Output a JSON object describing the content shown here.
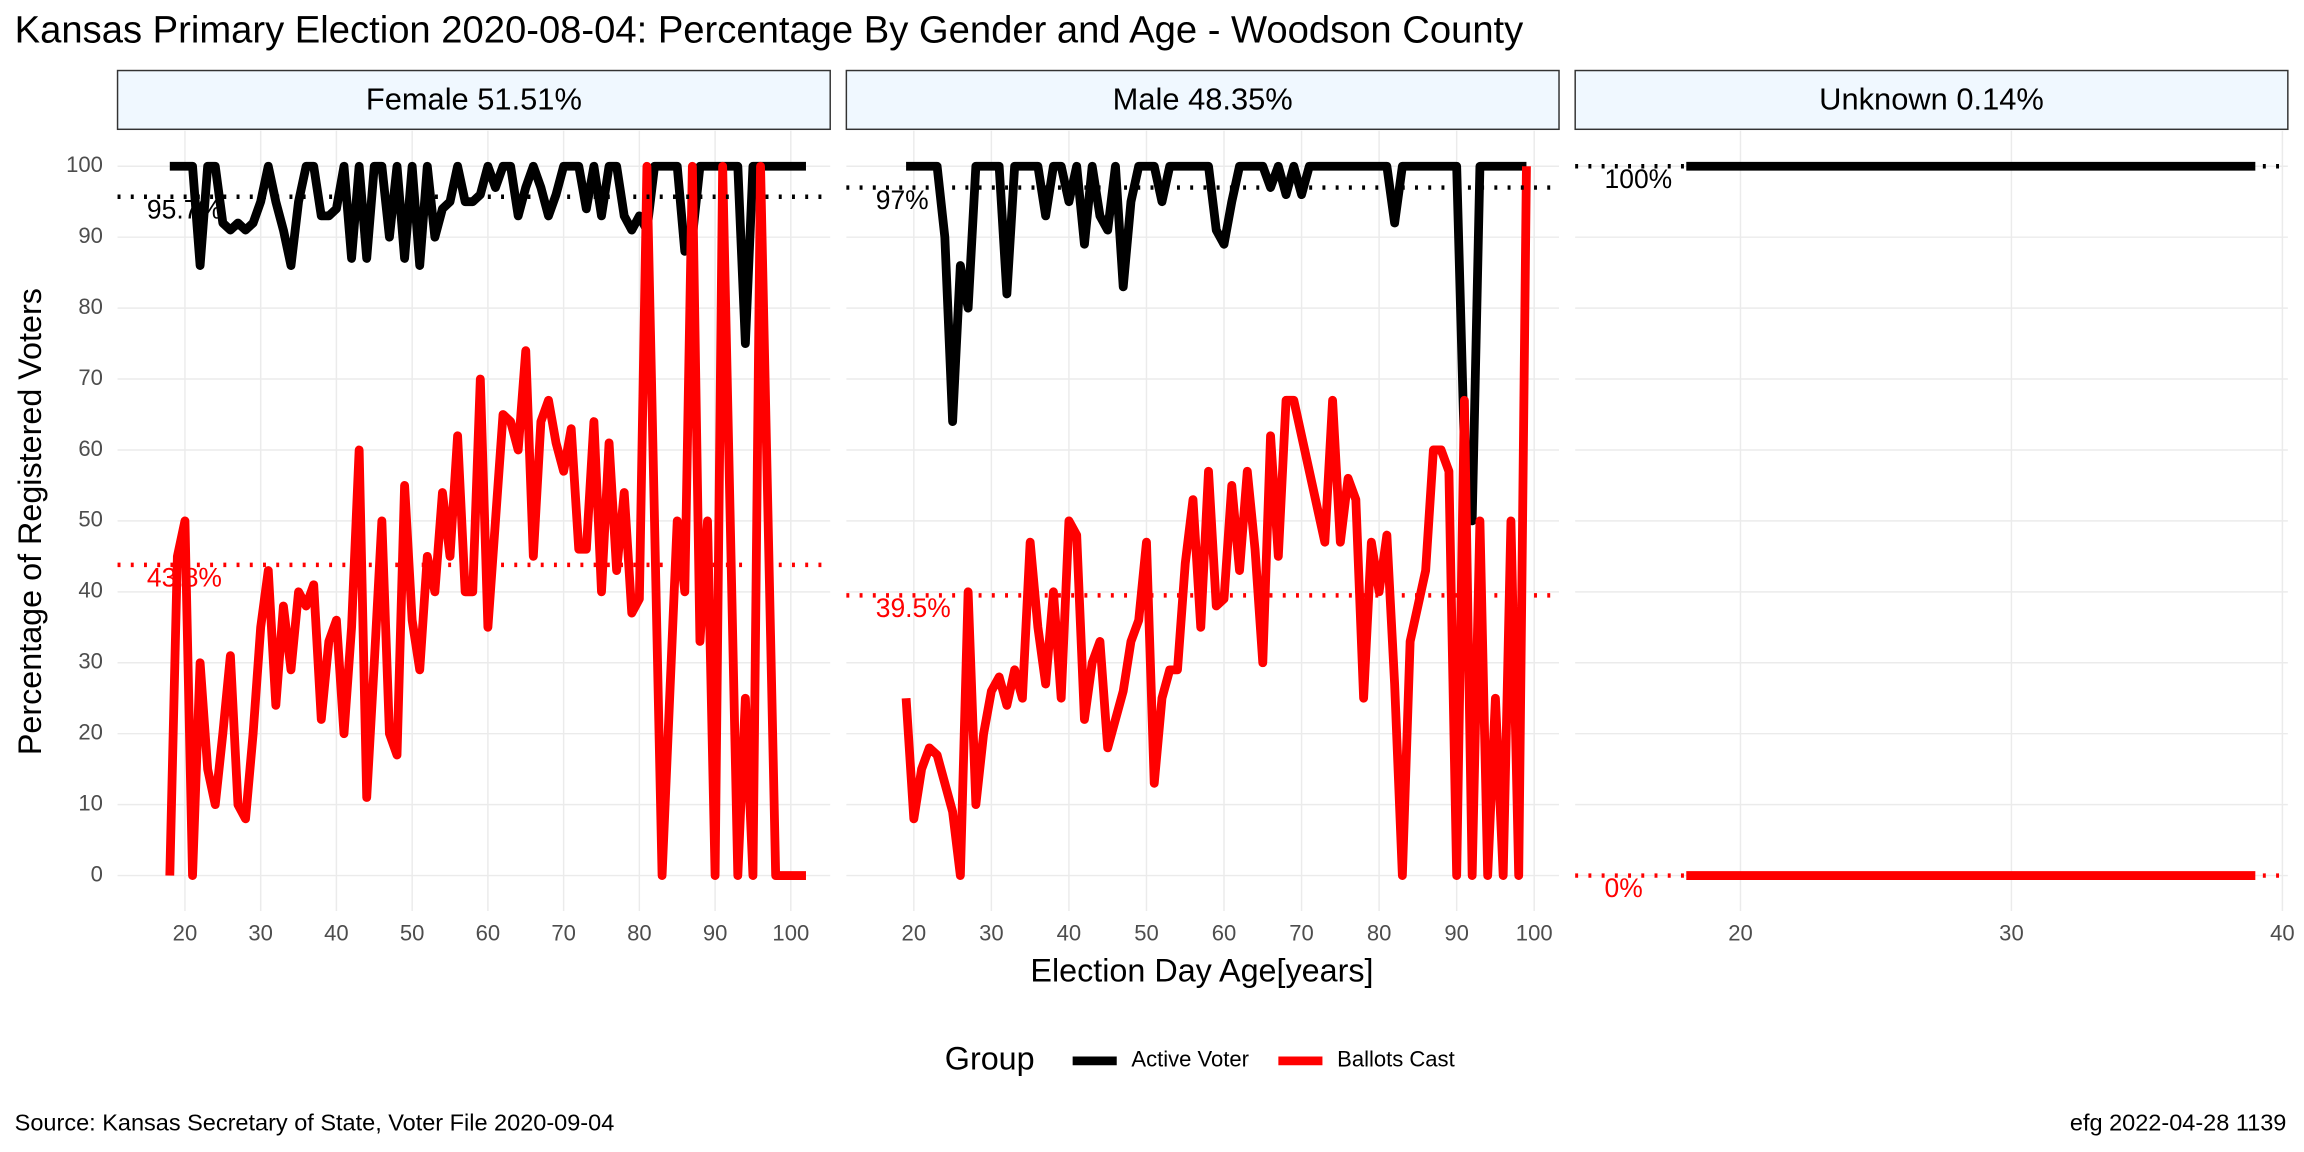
{
  "title": "Kansas Primary Election 2020-08-04:  Percentage By Gender and Age - Woodson County",
  "x_label": "Election Day Age[years]",
  "y_label": "Percentage of Registered Voters",
  "legend_title": "Group",
  "source": "Source:  Kansas Secretary of State, Voter File  2020-09-04",
  "credit": "efg 2022-04-28 1139",
  "chart_data": [
    {
      "type": "line",
      "title": "Female 51.51%",
      "x": [
        18,
        19,
        20,
        21,
        22,
        23,
        24,
        25,
        26,
        27,
        28,
        29,
        30,
        31,
        32,
        33,
        34,
        35,
        36,
        37,
        38,
        39,
        40,
        41,
        42,
        43,
        44,
        45,
        46,
        47,
        48,
        49,
        50,
        51,
        52,
        53,
        54,
        55,
        56,
        57,
        58,
        59,
        60,
        61,
        62,
        63,
        64,
        65,
        66,
        67,
        68,
        69,
        70,
        71,
        72,
        73,
        74,
        75,
        76,
        77,
        78,
        79,
        80,
        81,
        82,
        83,
        84,
        85,
        86,
        87,
        88,
        89,
        90,
        91,
        92,
        93,
        94,
        95,
        96,
        97,
        98,
        99,
        100,
        101,
        102
      ],
      "series": [
        {
          "name": "Active Voter",
          "color": "#000000",
          "values": [
            100,
            100,
            100,
            100,
            86,
            100,
            100,
            92,
            91,
            92,
            91,
            92,
            95,
            100,
            95,
            91,
            86,
            95,
            100,
            100,
            93,
            93,
            94,
            100,
            87,
            100,
            87,
            100,
            100,
            90,
            100,
            87,
            100,
            86,
            100,
            90,
            94,
            95,
            100,
            95,
            95,
            96,
            100,
            97,
            100,
            100,
            93,
            97,
            100,
            97,
            93,
            96,
            100,
            100,
            100,
            94,
            100,
            93,
            100,
            100,
            93,
            91,
            93,
            91,
            100,
            100,
            100,
            100,
            88,
            90,
            100,
            100,
            100,
            100,
            100,
            100,
            75,
            100,
            100,
            100,
            100,
            100,
            100,
            100,
            100
          ]
        },
        {
          "name": "Ballots Cast",
          "color": "#ff0000",
          "values": [
            0,
            45,
            50,
            0,
            30,
            15,
            10,
            20,
            31,
            10,
            8,
            20,
            35,
            43,
            24,
            38,
            29,
            40,
            38,
            41,
            22,
            33,
            36,
            20,
            35,
            60,
            11,
            30,
            50,
            20,
            17,
            55,
            36,
            29,
            45,
            40,
            54,
            45,
            62,
            40,
            40,
            70,
            35,
            50,
            65,
            64,
            60,
            74,
            45,
            64,
            67,
            61,
            57,
            63,
            46,
            46,
            64,
            40,
            61,
            43,
            54,
            37,
            39,
            100,
            50,
            0,
            25,
            50,
            40,
            100,
            33,
            50,
            0,
            100,
            50,
            0,
            25,
            0,
            100,
            50,
            0,
            0,
            0,
            0,
            0
          ]
        }
      ],
      "reference_lines": [
        {
          "value": 95.7,
          "label": "95.7%",
          "color": "#000000"
        },
        {
          "value": 43.8,
          "label": "43.8%",
          "color": "#ff0000"
        }
      ],
      "xlim": [
        11.1,
        105.2
      ],
      "xticks": [
        20,
        30,
        40,
        50,
        60,
        70,
        80,
        90,
        100
      ],
      "ylim": [
        -5,
        105
      ],
      "yticks": [
        0,
        10,
        20,
        30,
        40,
        50,
        60,
        70,
        80,
        90,
        100
      ],
      "grid": true
    },
    {
      "type": "line",
      "title": "Male 48.35%",
      "x": [
        19,
        20,
        21,
        22,
        23,
        24,
        25,
        26,
        27,
        28,
        29,
        30,
        31,
        32,
        33,
        34,
        35,
        36,
        37,
        38,
        39,
        40,
        41,
        42,
        43,
        44,
        45,
        46,
        47,
        48,
        49,
        50,
        51,
        52,
        53,
        54,
        55,
        56,
        57,
        58,
        59,
        60,
        61,
        62,
        63,
        64,
        65,
        66,
        67,
        68,
        69,
        70,
        71,
        72,
        73,
        74,
        75,
        76,
        77,
        78,
        79,
        80,
        81,
        82,
        83,
        84,
        85,
        86,
        87,
        88,
        89,
        90,
        91,
        92,
        93,
        94,
        95,
        96,
        97,
        98,
        99
      ],
      "series": [
        {
          "name": "Active Voter",
          "color": "#000000",
          "values": [
            100,
            100,
            100,
            100,
            100,
            90,
            64,
            86,
            80,
            100,
            100,
            100,
            100,
            82,
            100,
            100,
            100,
            100,
            93,
            100,
            100,
            95,
            100,
            89,
            100,
            93,
            91,
            100,
            83,
            95,
            100,
            100,
            100,
            95,
            100,
            100,
            100,
            100,
            100,
            100,
            91,
            89,
            95,
            100,
            100,
            100,
            100,
            97,
            100,
            96,
            100,
            96,
            100,
            100,
            100,
            100,
            100,
            100,
            100,
            100,
            100,
            100,
            100,
            92,
            100,
            100,
            100,
            100,
            100,
            100,
            100,
            100,
            60,
            50,
            100,
            100,
            100,
            100,
            100,
            100,
            100
          ]
        },
        {
          "name": "Ballots Cast",
          "color": "#ff0000",
          "values": [
            25,
            8,
            15,
            18,
            17,
            13,
            9,
            0,
            40,
            10,
            20,
            26,
            28,
            24,
            29,
            25,
            47,
            35,
            27,
            40,
            25,
            50,
            48,
            22,
            30,
            33,
            18,
            22,
            26,
            33,
            36,
            47,
            13,
            25,
            29,
            29,
            44,
            53,
            35,
            57,
            38,
            39,
            55,
            43,
            57,
            46,
            30,
            62,
            45,
            67,
            67,
            62,
            57,
            52,
            47,
            67,
            47,
            56,
            53,
            25,
            47,
            40,
            48,
            27,
            0,
            33,
            38,
            43,
            60,
            60,
            57,
            0,
            67,
            0,
            50,
            0,
            25,
            0,
            50,
            0,
            100
          ]
        }
      ],
      "reference_lines": [
        {
          "value": 97,
          "label": "97%",
          "color": "#000000"
        },
        {
          "value": 39.5,
          "label": "39.5%",
          "color": "#ff0000"
        }
      ],
      "xlim": [
        11.3,
        103.2
      ],
      "xticks": [
        20,
        30,
        40,
        50,
        60,
        70,
        80,
        90,
        100
      ],
      "ylim": [
        -5,
        105
      ],
      "yticks": [
        0,
        10,
        20,
        30,
        40,
        50,
        60,
        70,
        80,
        90,
        100
      ],
      "grid": true
    },
    {
      "type": "line",
      "title": "Unknown 0.14%",
      "x": [
        18,
        39
      ],
      "series": [
        {
          "name": "Active Voter",
          "color": "#000000",
          "values": [
            100,
            100
          ]
        },
        {
          "name": "Ballots Cast",
          "color": "#ff0000",
          "values": [
            0,
            0
          ]
        }
      ],
      "reference_lines": [
        {
          "value": 100,
          "label": "100%",
          "color": "#000000"
        },
        {
          "value": 0,
          "label": "0%",
          "color": "#ff0000"
        }
      ],
      "xlim": [
        13.9,
        40.2
      ],
      "xticks": [
        20,
        30,
        40
      ],
      "ylim": [
        -5,
        105
      ],
      "yticks": [
        0,
        10,
        20,
        30,
        40,
        50,
        60,
        70,
        80,
        90,
        100
      ],
      "grid": true
    }
  ]
}
